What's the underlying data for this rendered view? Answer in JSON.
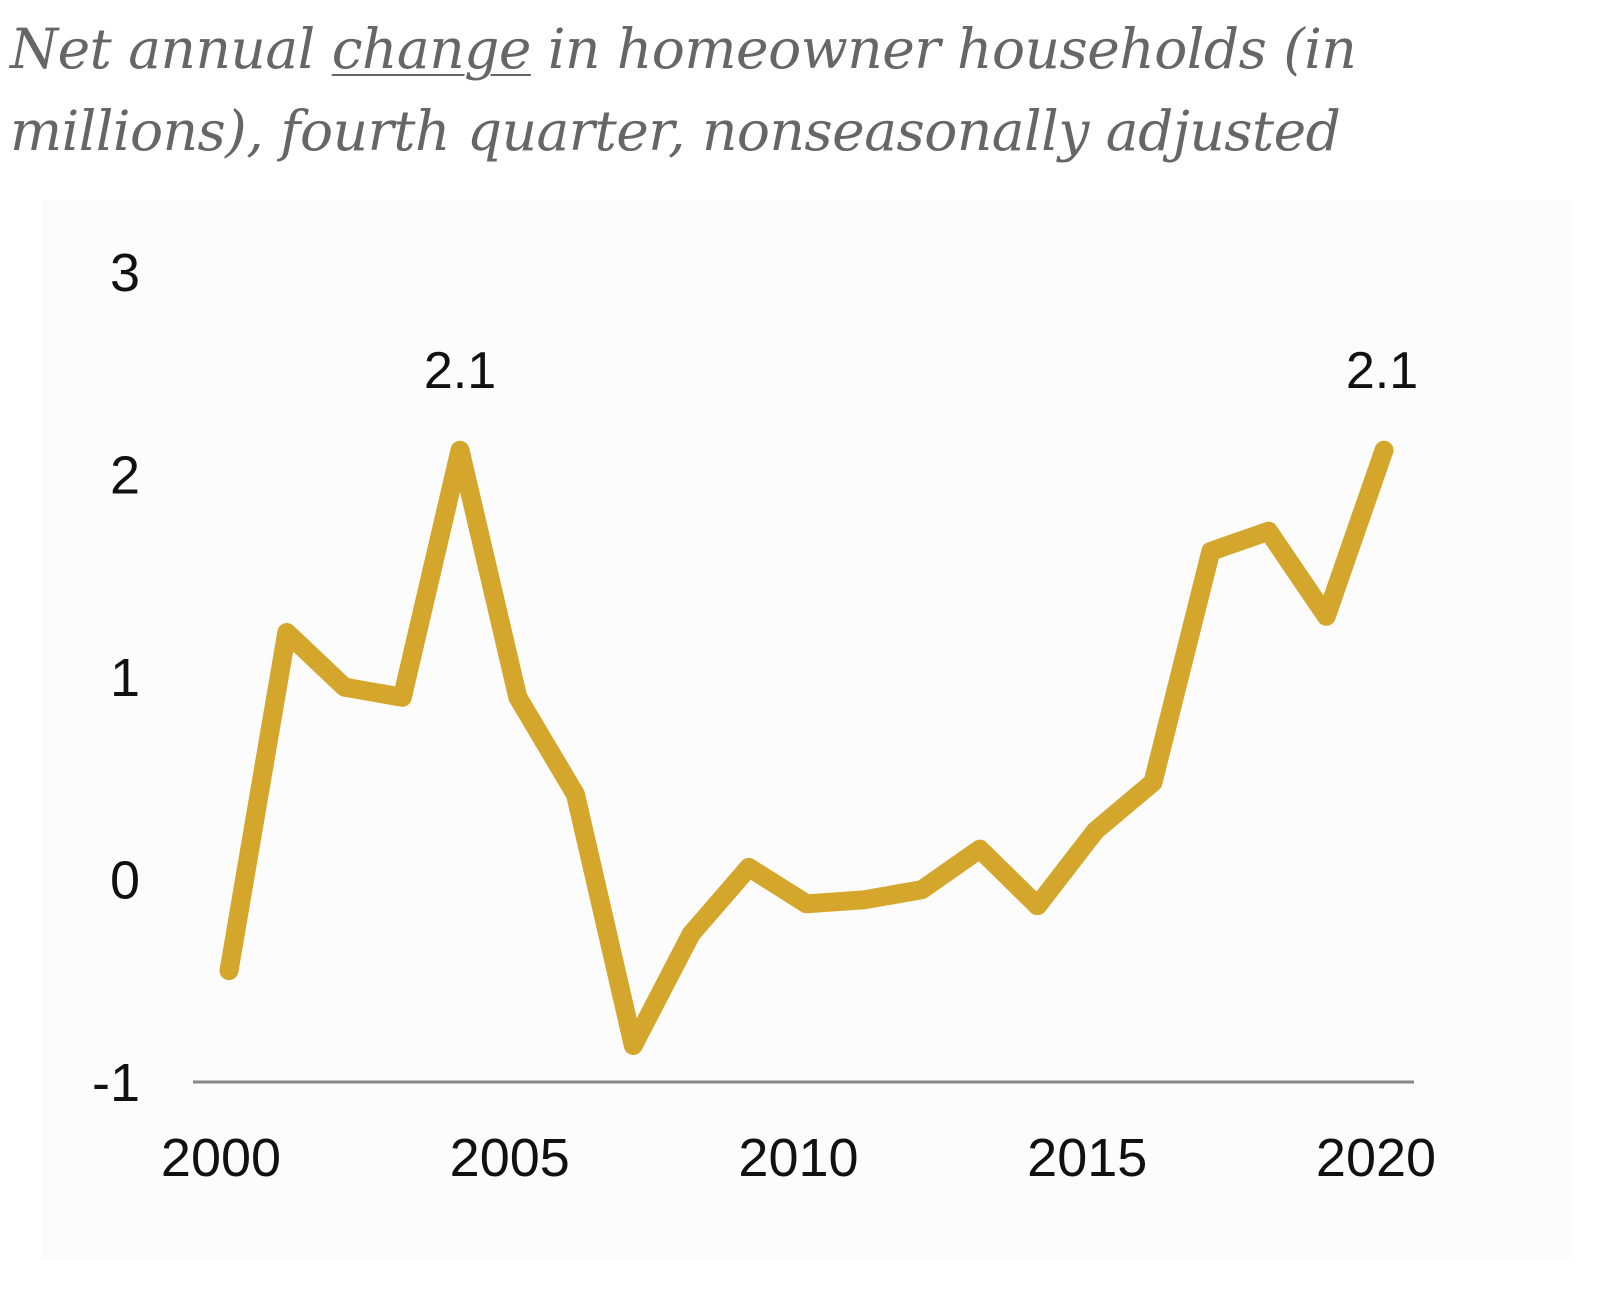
{
  "title": {
    "part1": "Net annual ",
    "emphasis": "change",
    "part2": " in homeowner households (in millions), fourth quarter, nonseasonally adjusted"
  },
  "chart_data": {
    "type": "line",
    "x": [
      2000,
      2001,
      2002,
      2003,
      2004,
      2005,
      2006,
      2007,
      2008,
      2009,
      2010,
      2011,
      2012,
      2013,
      2014,
      2015,
      2016,
      2017,
      2018,
      2019,
      2020
    ],
    "series": [
      {
        "values": [
          -0.45,
          1.22,
          0.95,
          0.9,
          2.12,
          0.9,
          0.42,
          -0.82,
          -0.27,
          0.06,
          -0.12,
          -0.1,
          -0.05,
          0.15,
          -0.13,
          0.24,
          0.48,
          1.62,
          1.72,
          1.3,
          2.12
        ]
      }
    ],
    "xticks": [
      2000,
      2005,
      2010,
      2015,
      2020
    ],
    "yticks": [
      -1,
      0,
      1,
      2,
      3
    ],
    "ylim": [
      -1,
      3
    ],
    "xlim": [
      2000,
      2020
    ],
    "xlabel": "",
    "ylabel": "",
    "grid": false,
    "legend": "none",
    "line_color": "#d4a72c",
    "baseline_color": "#888888",
    "annotations": [
      {
        "x": 2004,
        "y": 2.12,
        "text": "2.1"
      },
      {
        "x": 2020,
        "y": 2.12,
        "text": "2.1"
      }
    ]
  }
}
